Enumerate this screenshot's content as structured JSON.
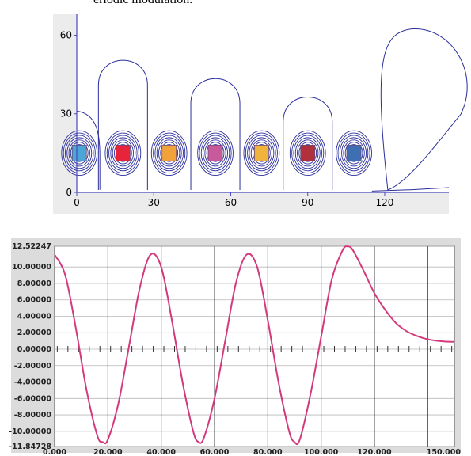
{
  "caption": "eriodic modulation.",
  "chart_data": [
    {
      "type": "heatmap",
      "description_kind": "contour",
      "title": "",
      "xlabel": "",
      "ylabel": "",
      "x_ticks": [
        "0",
        "30",
        "60",
        "90",
        "120"
      ],
      "y_ticks": [
        "0",
        "30",
        "60"
      ],
      "xlim": [
        0,
        145
      ],
      "ylim": [
        0,
        68
      ],
      "grid": false,
      "contour_color": "#2b2f9c",
      "sources": [
        {
          "x": 1,
          "y": 15,
          "color": "#4aa6d6"
        },
        {
          "x": 18,
          "y": 15,
          "color": "#e8243a"
        },
        {
          "x": 36,
          "y": 15,
          "color": "#f2a23a"
        },
        {
          "x": 54,
          "y": 15,
          "color": "#c85a9c"
        },
        {
          "x": 72,
          "y": 15,
          "color": "#f0b43c"
        },
        {
          "x": 90,
          "y": 15,
          "color": "#b0303c"
        },
        {
          "x": 108,
          "y": 15,
          "color": "#3f6fb3"
        }
      ],
      "outer_contour_peaks": [
        {
          "x": 18,
          "y": 53
        },
        {
          "x": 54,
          "y": 46
        },
        {
          "x": 90,
          "y": 39
        },
        {
          "x": 128,
          "y": 63
        }
      ]
    },
    {
      "type": "line",
      "title": "",
      "xlabel": "",
      "ylabel": "",
      "xlim": [
        0,
        150
      ],
      "ylim": [
        -11.84728,
        12.52247
      ],
      "x_ticks": [
        "0.000",
        "20.000",
        "40.000",
        "60.000",
        "80.000",
        "100.000",
        "120.000",
        "150.000"
      ],
      "y_ticks": [
        "12.52247",
        "10.00000",
        "8.00000",
        "6.00000",
        "4.00000",
        "2.00000",
        "0.00000",
        "-2.00000",
        "-4.00000",
        "-6.00000",
        "-8.00000",
        "-10.00000",
        "-11.84728"
      ],
      "grid": true,
      "line_color": "#d23a7c",
      "series": [
        {
          "x": [
            0,
            4,
            8,
            12,
            16,
            18,
            20,
            24,
            28,
            32,
            36,
            40,
            44,
            48,
            52,
            54,
            56,
            60,
            64,
            68,
            72,
            76,
            80,
            84,
            88,
            90,
            92,
            96,
            100,
            104,
            108,
            110,
            112,
            116,
            120,
            124,
            128,
            132,
            136,
            140,
            144,
            148,
            150
          ],
          "y": [
            11.5,
            9.0,
            2.5,
            -5.0,
            -10.5,
            -11.3,
            -11.0,
            -6.5,
            0.5,
            7.5,
            11.5,
            10.0,
            3.5,
            -4.0,
            -10.0,
            -11.3,
            -10.8,
            -6.0,
            1.0,
            8.0,
            11.5,
            10.0,
            3.5,
            -4.0,
            -10.0,
            -11.3,
            -11.0,
            -5.5,
            1.5,
            8.5,
            12.0,
            12.5,
            12.0,
            9.5,
            6.8,
            4.8,
            3.2,
            2.2,
            1.6,
            1.2,
            1.0,
            0.9,
            0.9
          ]
        }
      ],
      "zero_line_tick_spacing": 4
    }
  ]
}
